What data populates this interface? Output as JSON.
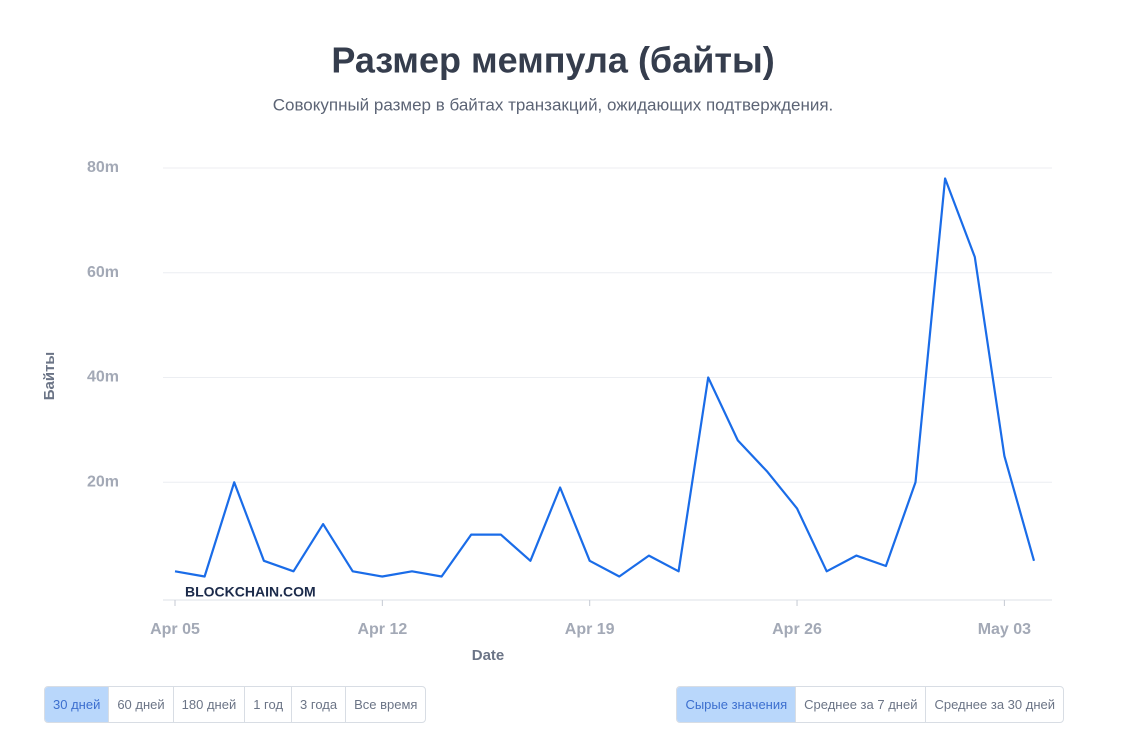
{
  "chart_data": {
    "type": "line",
    "title": "Размер мемпула (байты)",
    "subtitle": "Совокупный размер в байтах транзакций, ожидающих подтверждения.",
    "x_label": "Date",
    "y_label": "Байты",
    "watermark": "BLOCKCHAIN.COM",
    "x": [
      "Apr 05",
      "Apr 06",
      "Apr 07",
      "Apr 08",
      "Apr 09",
      "Apr 10",
      "Apr 11",
      "Apr 12",
      "Apr 13",
      "Apr 14",
      "Apr 15",
      "Apr 16",
      "Apr 17",
      "Apr 18",
      "Apr 19",
      "Apr 20",
      "Apr 21",
      "Apr 22",
      "Apr 23",
      "Apr 24",
      "Apr 25",
      "Apr 26",
      "Apr 27",
      "Apr 28",
      "Apr 29",
      "Apr 30",
      "May 01",
      "May 02",
      "May 03",
      "May 04"
    ],
    "xticks": [
      "Apr 05",
      "Apr 12",
      "Apr 19",
      "Apr 26",
      "May 03"
    ],
    "series": [
      {
        "name": "Байты",
        "color": "#1a6ce8",
        "values": [
          3000000,
          2000000,
          20000000,
          5000000,
          3000000,
          12000000,
          3000000,
          2000000,
          3000000,
          2000000,
          10000000,
          10000000,
          5000000,
          19000000,
          5000000,
          2000000,
          6000000,
          3000000,
          40000000,
          28000000,
          22000000,
          15000000,
          3000000,
          6000000,
          4000000,
          20000000,
          78000000,
          63000000,
          25000000,
          5000000
        ]
      }
    ],
    "ylim": [
      0,
      80000000
    ],
    "yticks": [
      {
        "value": 20000000,
        "label": "20m"
      },
      {
        "value": 40000000,
        "label": "40m"
      },
      {
        "value": 60000000,
        "label": "60m"
      },
      {
        "value": 80000000,
        "label": "80m"
      }
    ],
    "grid": true
  },
  "controls": {
    "periods": [
      "30 дней",
      "60 дней",
      "180 дней",
      "1 год",
      "3 года",
      "Все время"
    ],
    "active_period": 0,
    "modes": [
      "Сырые значения",
      "Среднее за 7 дней",
      "Среднее за 30 дней"
    ],
    "active_mode": 0
  }
}
